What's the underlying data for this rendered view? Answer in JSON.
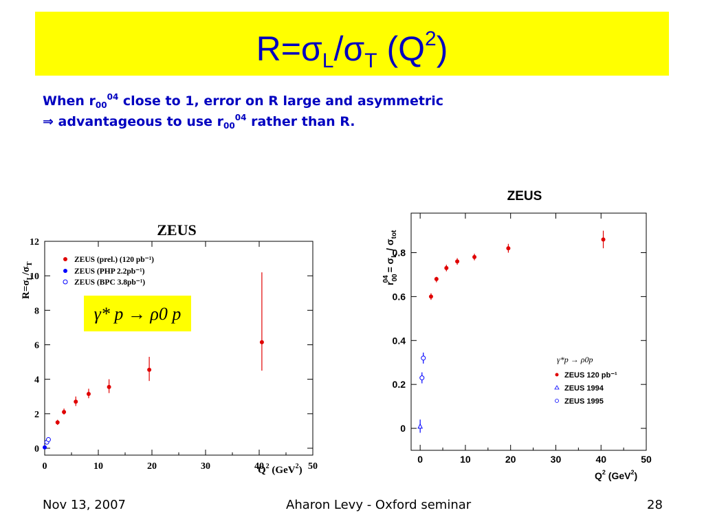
{
  "slide": {
    "title_main": "R=σ",
    "title_sub1": "L",
    "title_mid": "/σ",
    "title_sub2": "T",
    "title_paren": "(Q",
    "title_sup": "2",
    "title_close": ")",
    "line1_a": "When r",
    "line1_sub": "00",
    "line1_sup": "04",
    "line1_b": " close to 1, error on R large and asymmetric",
    "line2_a": "⇒ advantageous to use r",
    "line2_sub": "00",
    "line2_sup": "04",
    "line2_b": " rather than R."
  },
  "footer": {
    "date": "Nov 13, 2007",
    "center": "Aharon Levy - Oxford seminar",
    "page": "28"
  },
  "colors": {
    "title_bg": "#ffff00",
    "text_blue": "#0000c0",
    "red": "#e00000",
    "blue": "#0000ff"
  },
  "chart_data": [
    {
      "type": "scatter",
      "title": "ZEUS",
      "ylabel": "R=σL/σT",
      "xlabel": "Q² (GeV²)",
      "xlim": [
        0,
        50
      ],
      "ylim": [
        -0.4,
        12
      ],
      "xticks": [
        "0",
        "10",
        "20",
        "30",
        "40",
        "50"
      ],
      "yticks": [
        "0",
        "2",
        "4",
        "6",
        "8",
        "10",
        "12"
      ],
      "inset_label": "γ* p → ρ0 p",
      "series": [
        {
          "name": "ZEUS (prel.) (120 pb⁻¹)",
          "color": "#e00000",
          "marker": "filled-circle",
          "points": [
            {
              "x": 2.4,
              "y": 1.5,
              "lo": 1.35,
              "hi": 1.65
            },
            {
              "x": 3.6,
              "y": 2.1,
              "lo": 1.95,
              "hi": 2.3
            },
            {
              "x": 5.8,
              "y": 2.7,
              "lo": 2.45,
              "hi": 3.0
            },
            {
              "x": 8.2,
              "y": 3.15,
              "lo": 2.9,
              "hi": 3.45
            },
            {
              "x": 12.0,
              "y": 3.55,
              "lo": 3.2,
              "hi": 4.0
            },
            {
              "x": 19.5,
              "y": 4.55,
              "lo": 3.9,
              "hi": 5.3
            },
            {
              "x": 40.5,
              "y": 6.15,
              "lo": 4.5,
              "hi": 10.2
            }
          ]
        },
        {
          "name": "ZEUS (PHP 2.2pb⁻¹)",
          "color": "#0000ff",
          "marker": "filled-circle",
          "points": [
            {
              "x": 0.01,
              "y": 0.05,
              "lo": 0.0,
              "hi": 0.1
            }
          ]
        },
        {
          "name": "ZEUS (BPC 3.8pb⁻¹)",
          "color": "#0000ff",
          "marker": "open-circle",
          "points": [
            {
              "x": 0.4,
              "y": 0.35,
              "lo": 0.3,
              "hi": 0.4
            },
            {
              "x": 0.7,
              "y": 0.5,
              "lo": 0.45,
              "hi": 0.55
            }
          ]
        }
      ]
    },
    {
      "type": "scatter",
      "title": "ZEUS",
      "ylabel": "r04 00 = σL / σtot",
      "xlabel": "Q² (GeV²)",
      "xlim": [
        -2,
        50
      ],
      "ylim": [
        -0.1,
        0.98
      ],
      "xticks": [
        "0",
        "10",
        "20",
        "30",
        "40",
        "50"
      ],
      "yticks": [
        "0",
        "0.2",
        "0.4",
        "0.6",
        "0.8"
      ],
      "legend_title": "γ*p → ρ0p",
      "series": [
        {
          "name": "ZEUS 120 pb⁻¹",
          "color": "#e00000",
          "marker": "filled-circle",
          "points": [
            {
              "x": 2.4,
              "y": 0.6,
              "lo": 0.585,
              "hi": 0.615
            },
            {
              "x": 3.6,
              "y": 0.68,
              "lo": 0.665,
              "hi": 0.69
            },
            {
              "x": 5.8,
              "y": 0.73,
              "lo": 0.715,
              "hi": 0.745
            },
            {
              "x": 8.2,
              "y": 0.76,
              "lo": 0.745,
              "hi": 0.775
            },
            {
              "x": 12.0,
              "y": 0.78,
              "lo": 0.765,
              "hi": 0.795
            },
            {
              "x": 19.5,
              "y": 0.82,
              "lo": 0.8,
              "hi": 0.84
            },
            {
              "x": 40.5,
              "y": 0.86,
              "lo": 0.82,
              "hi": 0.9
            }
          ]
        },
        {
          "name": "ZEUS 1994",
          "color": "#0000ff",
          "marker": "open-triangle",
          "points": [
            {
              "x": 0.0,
              "y": 0.01,
              "lo": -0.02,
              "hi": 0.04
            }
          ]
        },
        {
          "name": "ZEUS 1995",
          "color": "#0000ff",
          "marker": "open-circle",
          "points": [
            {
              "x": 0.4,
              "y": 0.23,
              "lo": 0.205,
              "hi": 0.255
            },
            {
              "x": 0.7,
              "y": 0.32,
              "lo": 0.295,
              "hi": 0.345
            }
          ]
        }
      ]
    }
  ]
}
